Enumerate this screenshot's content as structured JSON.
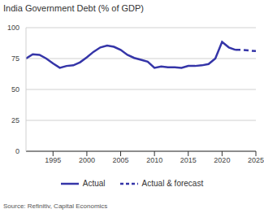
{
  "chart_data": {
    "type": "line",
    "title": "India Government Debt (% of GDP)",
    "source": "Source: Refinitiv, Capital Economics",
    "x": [
      1991,
      1992,
      1993,
      1994,
      1995,
      1996,
      1997,
      1998,
      1999,
      2000,
      2001,
      2002,
      2003,
      2004,
      2005,
      2006,
      2007,
      2008,
      2009,
      2010,
      2011,
      2012,
      2013,
      2014,
      2015,
      2016,
      2017,
      2018,
      2019,
      2020,
      2021,
      2022,
      2023,
      2024,
      2025
    ],
    "series": [
      {
        "name": "Actual",
        "color": "#3535a8",
        "line_style": "solid",
        "values": [
          75,
          78.5,
          78,
          75,
          71,
          67.5,
          69,
          69.5,
          72,
          76,
          80.5,
          84,
          85.5,
          84.5,
          82,
          78,
          75.5,
          74,
          72.5,
          67.5,
          68.5,
          68,
          68,
          67.5,
          69,
          69,
          69.5,
          70.5,
          75,
          88.5,
          84,
          82,
          null,
          null,
          null
        ]
      },
      {
        "name": "Actual & forecast",
        "color": "#3535a8",
        "line_style": "dashed",
        "values": [
          null,
          null,
          null,
          null,
          null,
          null,
          null,
          null,
          null,
          null,
          null,
          null,
          null,
          null,
          null,
          null,
          null,
          null,
          null,
          null,
          null,
          null,
          null,
          null,
          null,
          null,
          null,
          null,
          null,
          null,
          null,
          82,
          82,
          81.5,
          81
        ]
      }
    ],
    "xlim": [
      1991,
      2025
    ],
    "xticks": [
      1995,
      2000,
      2005,
      2010,
      2015,
      2020,
      2025
    ],
    "ylim": [
      0,
      100
    ],
    "yticks": [
      0,
      25,
      50,
      75,
      100
    ],
    "grid": true,
    "legend": "bottom"
  }
}
